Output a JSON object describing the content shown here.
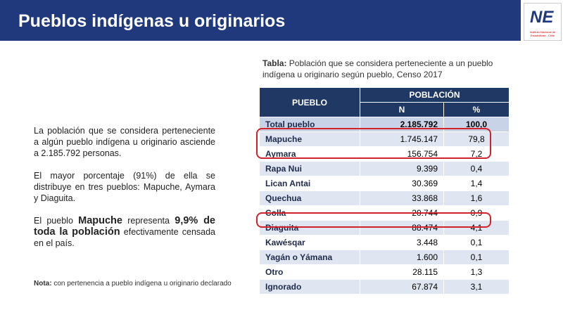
{
  "header": {
    "title": "Pueblos indígenas u originarios",
    "logo": {
      "mark": "NE",
      "caption": "Instituto Nacional de Estadísticas - Chile"
    }
  },
  "left": {
    "paragraphs": [
      [
        {
          "text": "La población que se considera perteneciente a algún pueblo indígena u originario asciende a 2.185.792 personas."
        }
      ],
      [
        {
          "text": "El mayor porcentaje (91%)  de ella se distribuye en tres pueblos: Mapuche, Aymara y Diaguita."
        }
      ],
      [
        {
          "text": "El pueblo "
        },
        {
          "text": "Mapuche",
          "bold": true
        },
        {
          "text": " representa "
        },
        {
          "text": "9,9% de toda la población",
          "bold": true
        },
        {
          "text": " efectivamente censada en el país."
        }
      ]
    ],
    "note": [
      {
        "text": "Nota:",
        "bold": true
      },
      {
        "text": " con pertenencia a pueblo indígena u originario declarado"
      }
    ]
  },
  "table": {
    "caption": [
      {
        "text": "Tabla:",
        "bold": true
      },
      {
        "text": " Población que se considera perteneciente a un pueblo indígena u originario según pueblo, Censo 2017"
      }
    ],
    "header": {
      "pueblo": "PUEBLO",
      "poblacion": "POBLACIÓN",
      "n": "N",
      "pct": "%"
    },
    "rows": [
      [
        "Total pueblo",
        "2.185.792",
        "100,0"
      ],
      [
        "Mapuche",
        "1.745.147",
        "79,8"
      ],
      [
        "Aymara",
        "156.754",
        "7,2"
      ],
      [
        "Rapa Nui",
        "9.399",
        "0,4"
      ],
      [
        "Lican Antai",
        "30.369",
        "1,4"
      ],
      [
        "Quechua",
        "33.868",
        "1,6"
      ],
      [
        "Colla",
        "20.744",
        "0,9"
      ],
      [
        "Diaguita",
        "88.474",
        "4,1"
      ],
      [
        "Kawésqar",
        "3.448",
        "0,1"
      ],
      [
        "Yagán o Yámana",
        "1.600",
        "0,1"
      ],
      [
        "Otro",
        "28.115",
        "1,3"
      ],
      [
        "Ignorado",
        "67.874",
        "3,1"
      ]
    ]
  }
}
